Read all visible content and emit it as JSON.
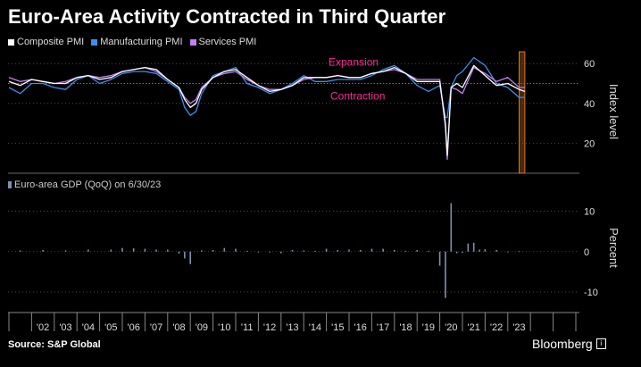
{
  "title": "Euro-Area Activity Contracted in Third Quarter",
  "source": "Source: S&P Global",
  "brand": "Bloomberg",
  "brand_icon": "i",
  "chart_data": [
    {
      "type": "line",
      "ylabel": "Index level",
      "ylim": [
        5,
        65
      ],
      "yticks": [
        20,
        40,
        60
      ],
      "threshold": 50,
      "annotations": [
        "Expansion",
        "Contraction"
      ],
      "highlight_region": [
        2023.5,
        2023.75
      ],
      "colors": {
        "Composite PMI": "#ffffff",
        "Manufacturing PMI": "#3d8ef0",
        "Services PMI": "#c77ef0",
        "threshold": "#ff2a9a",
        "highlight": "#d8761a"
      },
      "series": [
        {
          "name": "Composite PMI",
          "x": [
            2001.0,
            2001.5,
            2002.0,
            2002.5,
            2003.0,
            2003.5,
            2004.0,
            2004.5,
            2005.0,
            2005.5,
            2006.0,
            2006.5,
            2007.0,
            2007.5,
            2008.0,
            2008.5,
            2008.75,
            2009.0,
            2009.25,
            2009.5,
            2010.0,
            2010.5,
            2011.0,
            2011.5,
            2012.0,
            2012.5,
            2013.0,
            2013.5,
            2014.0,
            2014.5,
            2015.0,
            2015.5,
            2016.0,
            2016.5,
            2017.0,
            2017.5,
            2018.0,
            2018.5,
            2019.0,
            2019.5,
            2020.0,
            2020.25,
            2020.33,
            2020.5,
            2020.75,
            2021.0,
            2021.5,
            2022.0,
            2022.5,
            2023.0,
            2023.5,
            2023.75
          ],
          "values": [
            51,
            49,
            52,
            51,
            50,
            50,
            53,
            54,
            52,
            53,
            56,
            57,
            58,
            57,
            52,
            48,
            42,
            38,
            40,
            47,
            53,
            56,
            57,
            53,
            49,
            46,
            47,
            49,
            53,
            53,
            53,
            54,
            53,
            53,
            55,
            56,
            58,
            55,
            51,
            51,
            51,
            30,
            14,
            48,
            50,
            48,
            59,
            54,
            49,
            50,
            47,
            46
          ]
        },
        {
          "name": "Manufacturing PMI",
          "x": [
            2001.0,
            2001.5,
            2002.0,
            2002.5,
            2003.0,
            2003.5,
            2004.0,
            2004.5,
            2005.0,
            2005.5,
            2006.0,
            2006.5,
            2007.0,
            2007.5,
            2008.0,
            2008.5,
            2008.75,
            2009.0,
            2009.25,
            2009.5,
            2010.0,
            2010.5,
            2011.0,
            2011.5,
            2012.0,
            2012.5,
            2013.0,
            2013.5,
            2014.0,
            2014.5,
            2015.0,
            2015.5,
            2016.0,
            2016.5,
            2017.0,
            2017.5,
            2018.0,
            2018.5,
            2019.0,
            2019.5,
            2020.0,
            2020.25,
            2020.33,
            2020.5,
            2020.75,
            2021.0,
            2021.5,
            2022.0,
            2022.5,
            2023.0,
            2023.5,
            2023.75
          ],
          "values": [
            48,
            45,
            50,
            50,
            48,
            47,
            52,
            54,
            50,
            52,
            55,
            56,
            56,
            55,
            51,
            47,
            38,
            34,
            36,
            45,
            54,
            56,
            58,
            50,
            48,
            45,
            47,
            50,
            54,
            51,
            51,
            52,
            52,
            52,
            54,
            57,
            59,
            55,
            49,
            46,
            49,
            33,
            33,
            48,
            54,
            56,
            63,
            59,
            50,
            48,
            43,
            43
          ]
        },
        {
          "name": "Services PMI",
          "x": [
            2001.0,
            2001.5,
            2002.0,
            2002.5,
            2003.0,
            2003.5,
            2004.0,
            2004.5,
            2005.0,
            2005.5,
            2006.0,
            2006.5,
            2007.0,
            2007.5,
            2008.0,
            2008.5,
            2008.75,
            2009.0,
            2009.25,
            2009.5,
            2010.0,
            2010.5,
            2011.0,
            2011.5,
            2012.0,
            2012.5,
            2013.0,
            2013.5,
            2014.0,
            2014.5,
            2015.0,
            2015.5,
            2016.0,
            2016.5,
            2017.0,
            2017.5,
            2018.0,
            2018.5,
            2019.0,
            2019.5,
            2020.0,
            2020.25,
            2020.33,
            2020.5,
            2020.75,
            2021.0,
            2021.5,
            2022.0,
            2022.5,
            2023.0,
            2023.5,
            2023.75
          ],
          "values": [
            53,
            51,
            52,
            51,
            50,
            51,
            53,
            54,
            53,
            54,
            56,
            57,
            58,
            56,
            52,
            48,
            43,
            40,
            42,
            48,
            53,
            55,
            56,
            52,
            49,
            47,
            47,
            49,
            52,
            53,
            53,
            54,
            53,
            53,
            55,
            56,
            57,
            55,
            52,
            52,
            52,
            28,
            12,
            48,
            47,
            45,
            58,
            55,
            51,
            53,
            48,
            48
          ]
        }
      ]
    },
    {
      "type": "bar",
      "series_name": "Euro-area GDP (QoQ) on 6/30/23",
      "ylabel": "Percent",
      "ylim": [
        -14,
        15
      ],
      "yticks": [
        -10,
        0,
        10
      ],
      "color": "#7f8fae",
      "x": [
        2001.5,
        2002.5,
        2003.5,
        2004.5,
        2005.5,
        2006.0,
        2006.5,
        2007.0,
        2007.5,
        2008.0,
        2008.5,
        2008.75,
        2009.0,
        2009.5,
        2010.0,
        2010.5,
        2011.0,
        2011.5,
        2012.0,
        2012.5,
        2013.0,
        2013.5,
        2014.0,
        2014.5,
        2015.0,
        2015.5,
        2016.0,
        2016.5,
        2017.0,
        2017.5,
        2018.0,
        2018.5,
        2019.0,
        2019.5,
        2020.0,
        2020.25,
        2020.5,
        2020.75,
        2021.0,
        2021.25,
        2021.5,
        2021.75,
        2022.0,
        2022.5,
        2023.0,
        2023.5
      ],
      "values": [
        0.3,
        0.4,
        0.3,
        0.5,
        0.5,
        0.9,
        0.8,
        0.7,
        0.5,
        0.5,
        -0.5,
        -1.7,
        -3.1,
        0.3,
        0.4,
        0.9,
        0.7,
        0.2,
        -0.2,
        -0.2,
        -0.4,
        0.4,
        0.3,
        0.2,
        0.7,
        0.4,
        0.5,
        0.4,
        0.7,
        0.7,
        0.4,
        0.2,
        0.4,
        0.2,
        -3.5,
        -11.5,
        12.0,
        -0.4,
        -0.3,
        2.0,
        2.2,
        0.5,
        0.6,
        0.4,
        0.0,
        0.1
      ]
    }
  ],
  "x_ticks": [
    "'02",
    "'03",
    "'04",
    "'05",
    "'06",
    "'07",
    "'08",
    "'09",
    "'10",
    "'11",
    "'12",
    "'13",
    "'14",
    "'15",
    "'16",
    "'17",
    "'18",
    "'19",
    "'20",
    "'21",
    "'22",
    "'23"
  ]
}
